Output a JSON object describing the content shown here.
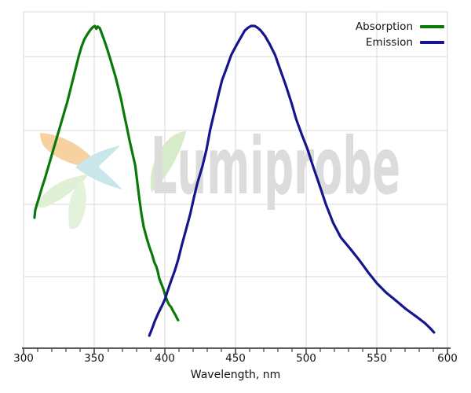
{
  "figure": {
    "background": "#ffffff"
  },
  "watermark": {
    "text": "Lumiprobe",
    "text_color": "#dcdcdc",
    "blade_colors": [
      "#f7d2a0",
      "#c9e6ea",
      "#d6ebc9",
      "#dff0d5",
      "#e3f2da"
    ]
  },
  "legend": {
    "items": [
      {
        "label": "Absorption",
        "color": "#0a790a"
      },
      {
        "label": "Emission",
        "color": "#15158d"
      }
    ]
  },
  "chart_data": {
    "type": "line",
    "title": "",
    "xlabel": "Wavelength, nm",
    "ylabel": "",
    "xlim": [
      300,
      600
    ],
    "ylim": [
      0,
      1.05
    ],
    "x_ticks": [
      300,
      350,
      400,
      450,
      500,
      550,
      600
    ],
    "x_minor_tick_step": 10,
    "grid": true,
    "y_axis_labeled": false,
    "legend_position": "top-right",
    "watermark": "Lumiprobe",
    "series": [
      {
        "name": "Absorption",
        "color": "#0a790a",
        "points": [
          [
            307.7,
            0.405
          ],
          [
            308.3,
            0.428
          ],
          [
            309.5,
            0.447
          ],
          [
            311,
            0.468
          ],
          [
            313,
            0.498
          ],
          [
            315,
            0.525
          ],
          [
            317,
            0.555
          ],
          [
            319,
            0.585
          ],
          [
            321,
            0.615
          ],
          [
            323,
            0.645
          ],
          [
            325,
            0.675
          ],
          [
            327,
            0.705
          ],
          [
            329,
            0.735
          ],
          [
            331,
            0.765
          ],
          [
            333,
            0.8
          ],
          [
            335,
            0.835
          ],
          [
            337,
            0.87
          ],
          [
            339,
            0.905
          ],
          [
            341,
            0.935
          ],
          [
            343,
            0.958
          ],
          [
            345,
            0.973
          ],
          [
            347,
            0.986
          ],
          [
            349,
            0.996
          ],
          [
            350.5,
            1.0
          ],
          [
            351.5,
            0.991
          ],
          [
            352.5,
            0.998
          ],
          [
            354,
            0.993
          ],
          [
            355.5,
            0.975
          ],
          [
            357,
            0.957
          ],
          [
            359,
            0.931
          ],
          [
            361,
            0.903
          ],
          [
            363,
            0.873
          ],
          [
            365,
            0.844
          ],
          [
            367,
            0.809
          ],
          [
            369,
            0.773
          ],
          [
            371,
            0.729
          ],
          [
            373,
            0.688
          ],
          [
            375,
            0.645
          ],
          [
            377,
            0.606
          ],
          [
            379,
            0.568
          ],
          [
            380.5,
            0.515
          ],
          [
            382,
            0.462
          ],
          [
            383.5,
            0.415
          ],
          [
            385,
            0.377
          ],
          [
            387,
            0.344
          ],
          [
            389,
            0.315
          ],
          [
            391,
            0.29
          ],
          [
            392.5,
            0.267
          ],
          [
            394,
            0.253
          ],
          [
            395,
            0.238
          ],
          [
            396,
            0.217
          ],
          [
            397.5,
            0.2
          ],
          [
            399,
            0.183
          ],
          [
            400.5,
            0.161
          ],
          [
            401.7,
            0.146
          ],
          [
            403,
            0.135
          ],
          [
            404.5,
            0.127
          ],
          [
            406,
            0.114
          ],
          [
            407.5,
            0.103
          ],
          [
            408.6,
            0.093
          ],
          [
            409.4,
            0.087
          ]
        ]
      },
      {
        "name": "Emission",
        "color": "#15158d",
        "points": [
          [
            389,
            0.039
          ],
          [
            391,
            0.061
          ],
          [
            393,
            0.085
          ],
          [
            395.5,
            0.11
          ],
          [
            398,
            0.132
          ],
          [
            400,
            0.151
          ],
          [
            402,
            0.178
          ],
          [
            404.5,
            0.21
          ],
          [
            407,
            0.24
          ],
          [
            409.5,
            0.276
          ],
          [
            412,
            0.32
          ],
          [
            415,
            0.368
          ],
          [
            418,
            0.417
          ],
          [
            420.5,
            0.466
          ],
          [
            423,
            0.512
          ],
          [
            426.5,
            0.563
          ],
          [
            429.5,
            0.617
          ],
          [
            432,
            0.676
          ],
          [
            435,
            0.732
          ],
          [
            438,
            0.788
          ],
          [
            440.5,
            0.832
          ],
          [
            444,
            0.873
          ],
          [
            447,
            0.91
          ],
          [
            450.5,
            0.939
          ],
          [
            454,
            0.966
          ],
          [
            456.5,
            0.985
          ],
          [
            459,
            0.995
          ],
          [
            461,
            1.0
          ],
          [
            463.5,
            1.0
          ],
          [
            465.5,
            0.995
          ],
          [
            468,
            0.985
          ],
          [
            471,
            0.968
          ],
          [
            474.5,
            0.941
          ],
          [
            478,
            0.91
          ],
          [
            481.5,
            0.866
          ],
          [
            485.5,
            0.817
          ],
          [
            489.5,
            0.763
          ],
          [
            493,
            0.71
          ],
          [
            497,
            0.662
          ],
          [
            501,
            0.617
          ],
          [
            505,
            0.563
          ],
          [
            509,
            0.512
          ],
          [
            514,
            0.446
          ],
          [
            519,
            0.39
          ],
          [
            524.5,
            0.344
          ],
          [
            531.5,
            0.307
          ],
          [
            538,
            0.271
          ],
          [
            544.5,
            0.232
          ],
          [
            550,
            0.202
          ],
          [
            556.5,
            0.173
          ],
          [
            564,
            0.146
          ],
          [
            570.5,
            0.122
          ],
          [
            578,
            0.098
          ],
          [
            584,
            0.078
          ],
          [
            588,
            0.061
          ],
          [
            590.5,
            0.049
          ]
        ]
      }
    ]
  }
}
